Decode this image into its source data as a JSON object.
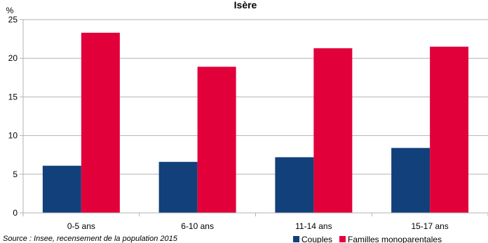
{
  "chart_data": {
    "type": "bar",
    "title": "Isère",
    "ylabel": "%",
    "xlabel": "",
    "ylim": [
      0,
      25
    ],
    "yticks": [
      0,
      5,
      10,
      15,
      20,
      25
    ],
    "grid": true,
    "legend_position": "bottom-right",
    "categories": [
      "0-5 ans",
      "6-10 ans",
      "11-14 ans",
      "15-17 ans"
    ],
    "series": [
      {
        "name": "Couples",
        "color": "#12407a",
        "values": [
          6.1,
          6.6,
          7.2,
          8.4
        ]
      },
      {
        "name": "Familles monoparentales",
        "color": "#e2003a",
        "values": [
          23.3,
          18.9,
          21.3,
          21.5
        ]
      }
    ]
  },
  "source": "Source : Insee, recensement de la population 2015"
}
